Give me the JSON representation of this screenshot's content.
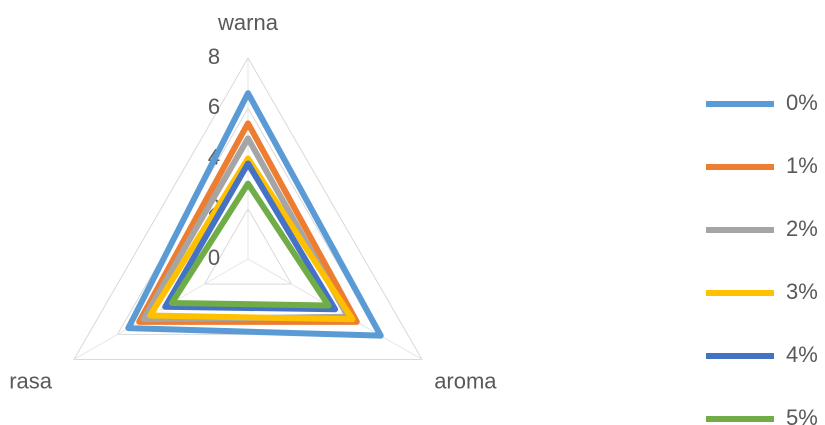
{
  "chart_data": {
    "type": "radar",
    "categories": [
      "warna",
      "aroma",
      "rasa"
    ],
    "series": [
      {
        "name": "0%",
        "color": "#5b9bd5",
        "values": [
          6.6,
          6.1,
          5.5
        ]
      },
      {
        "name": "1%",
        "color": "#ed7d31",
        "values": [
          5.4,
          5.0,
          5.0
        ]
      },
      {
        "name": "2%",
        "color": "#a5a5a5",
        "values": [
          4.8,
          4.6,
          4.8
        ]
      },
      {
        "name": "3%",
        "color": "#ffc000",
        "values": [
          4.0,
          4.8,
          4.5
        ]
      },
      {
        "name": "4%",
        "color": "#4472c4",
        "values": [
          3.8,
          4.0,
          3.8
        ]
      },
      {
        "name": "5%",
        "color": "#70ad47",
        "values": [
          3.0,
          3.7,
          3.5
        ]
      }
    ],
    "ylim": [
      0,
      8
    ],
    "yticks": [
      0,
      2,
      4,
      6,
      8
    ],
    "grid": true,
    "legend": "right"
  }
}
